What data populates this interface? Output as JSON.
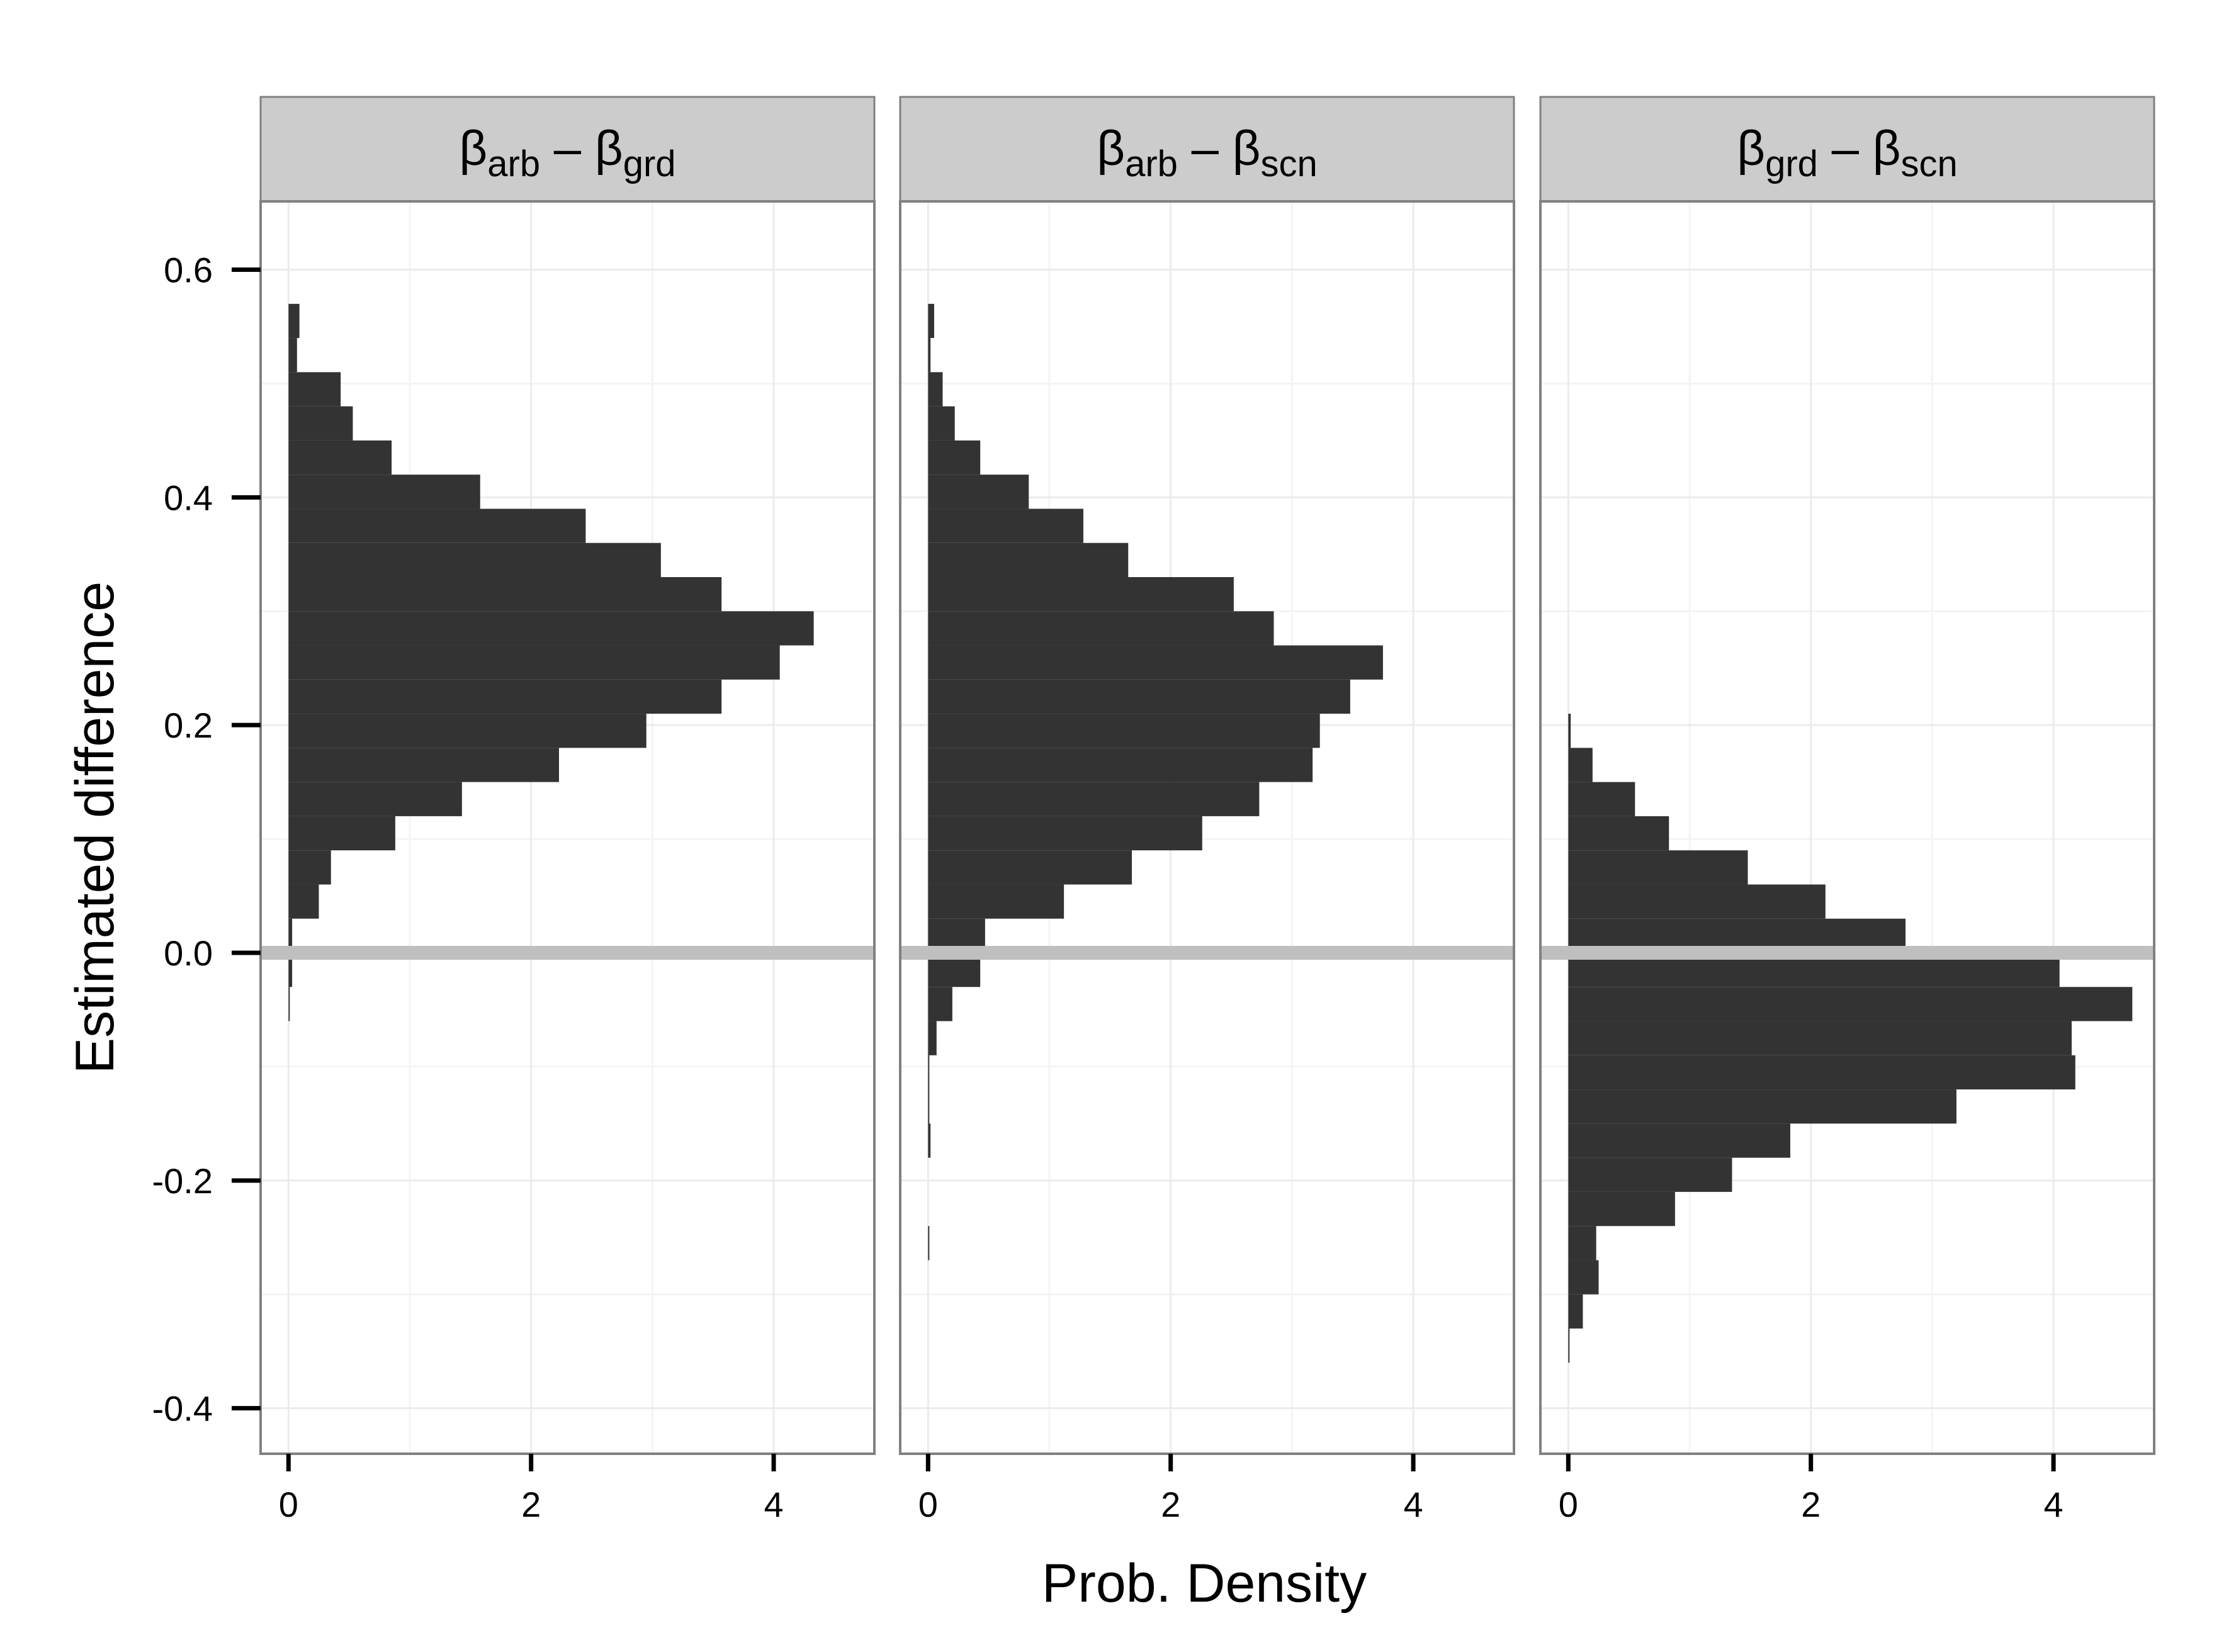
{
  "chart_data": {
    "type": "bar",
    "orientation": "horizontal histogram",
    "xlabel": "Prob. Density",
    "ylabel": "Estimated difference",
    "xlim": [
      -0.23,
      4.83
    ],
    "ylim": [
      -0.44,
      0.66
    ],
    "x_ticks": [
      "0",
      "2",
      "4"
    ],
    "y_ticks": [
      "0.6",
      "0.4",
      "0.2",
      "0.0",
      "-0.2",
      "-0.4"
    ],
    "grid": true,
    "reference_line_y": 0.0,
    "colors": {
      "bar": "#333333",
      "strip": "#cccccc",
      "reference_line": "#bfbfbf",
      "grid": "#ebebeb"
    },
    "panels": [
      {
        "strip": {
          "a": "β",
          "a_sub": "arb",
          "sep": " – ",
          "b": "β",
          "b_sub": "grd"
        },
        "bars": [
          {
            "y0": -0.06,
            "y1": -0.03,
            "density": 0.01
          },
          {
            "y0": -0.03,
            "y1": 0.0,
            "density": 0.03
          },
          {
            "y0": 0.0,
            "y1": 0.03,
            "density": 0.03
          },
          {
            "y0": 0.03,
            "y1": 0.06,
            "density": 0.25
          },
          {
            "y0": 0.06,
            "y1": 0.09,
            "density": 0.35
          },
          {
            "y0": 0.09,
            "y1": 0.12,
            "density": 0.88
          },
          {
            "y0": 0.12,
            "y1": 0.15,
            "density": 1.43
          },
          {
            "y0": 0.15,
            "y1": 0.18,
            "density": 2.23
          },
          {
            "y0": 0.18,
            "y1": 0.21,
            "density": 2.95
          },
          {
            "y0": 0.21,
            "y1": 0.24,
            "density": 3.57
          },
          {
            "y0": 0.24,
            "y1": 0.27,
            "density": 4.05
          },
          {
            "y0": 0.27,
            "y1": 0.3,
            "density": 4.33
          },
          {
            "y0": 0.3,
            "y1": 0.33,
            "density": 3.57
          },
          {
            "y0": 0.33,
            "y1": 0.36,
            "density": 3.07
          },
          {
            "y0": 0.36,
            "y1": 0.39,
            "density": 2.45
          },
          {
            "y0": 0.39,
            "y1": 0.42,
            "density": 1.58
          },
          {
            "y0": 0.42,
            "y1": 0.45,
            "density": 0.85
          },
          {
            "y0": 0.45,
            "y1": 0.48,
            "density": 0.53
          },
          {
            "y0": 0.48,
            "y1": 0.51,
            "density": 0.43
          },
          {
            "y0": 0.51,
            "y1": 0.54,
            "density": 0.07
          },
          {
            "y0": 0.54,
            "y1": 0.57,
            "density": 0.09
          }
        ]
      },
      {
        "strip": {
          "a": "β",
          "a_sub": "arb",
          "sep": " – ",
          "b": "β",
          "b_sub": "scn"
        },
        "bars": [
          {
            "y0": -0.27,
            "y1": -0.24,
            "density": 0.01
          },
          {
            "y0": -0.18,
            "y1": -0.15,
            "density": 0.02
          },
          {
            "y0": -0.15,
            "y1": -0.12,
            "density": 0.01
          },
          {
            "y0": -0.12,
            "y1": -0.09,
            "density": 0.01
          },
          {
            "y0": -0.09,
            "y1": -0.06,
            "density": 0.07
          },
          {
            "y0": -0.06,
            "y1": -0.03,
            "density": 0.2
          },
          {
            "y0": -0.03,
            "y1": 0.0,
            "density": 0.43
          },
          {
            "y0": 0.0,
            "y1": 0.03,
            "density": 0.47
          },
          {
            "y0": 0.03,
            "y1": 0.06,
            "density": 1.12
          },
          {
            "y0": 0.06,
            "y1": 0.09,
            "density": 1.68
          },
          {
            "y0": 0.09,
            "y1": 0.12,
            "density": 2.26
          },
          {
            "y0": 0.12,
            "y1": 0.15,
            "density": 2.73
          },
          {
            "y0": 0.15,
            "y1": 0.18,
            "density": 3.17
          },
          {
            "y0": 0.18,
            "y1": 0.21,
            "density": 3.23
          },
          {
            "y0": 0.21,
            "y1": 0.24,
            "density": 3.48
          },
          {
            "y0": 0.24,
            "y1": 0.27,
            "density": 3.75
          },
          {
            "y0": 0.27,
            "y1": 0.3,
            "density": 2.85
          },
          {
            "y0": 0.3,
            "y1": 0.33,
            "density": 2.52
          },
          {
            "y0": 0.33,
            "y1": 0.36,
            "density": 1.65
          },
          {
            "y0": 0.36,
            "y1": 0.39,
            "density": 1.28
          },
          {
            "y0": 0.39,
            "y1": 0.42,
            "density": 0.83
          },
          {
            "y0": 0.42,
            "y1": 0.45,
            "density": 0.43
          },
          {
            "y0": 0.45,
            "y1": 0.48,
            "density": 0.22
          },
          {
            "y0": 0.48,
            "y1": 0.51,
            "density": 0.12
          },
          {
            "y0": 0.51,
            "y1": 0.54,
            "density": 0.02
          },
          {
            "y0": 0.54,
            "y1": 0.57,
            "density": 0.05
          }
        ]
      },
      {
        "strip": {
          "a": "β",
          "a_sub": "grd",
          "sep": " – ",
          "b": "β",
          "b_sub": "scn"
        },
        "bars": [
          {
            "y0": -0.36,
            "y1": -0.33,
            "density": 0.01
          },
          {
            "y0": -0.33,
            "y1": -0.3,
            "density": 0.12
          },
          {
            "y0": -0.3,
            "y1": -0.27,
            "density": 0.25
          },
          {
            "y0": -0.27,
            "y1": -0.24,
            "density": 0.23
          },
          {
            "y0": -0.24,
            "y1": -0.21,
            "density": 0.88
          },
          {
            "y0": -0.21,
            "y1": -0.18,
            "density": 1.35
          },
          {
            "y0": -0.18,
            "y1": -0.15,
            "density": 1.83
          },
          {
            "y0": -0.15,
            "y1": -0.12,
            "density": 3.2
          },
          {
            "y0": -0.12,
            "y1": -0.09,
            "density": 4.18
          },
          {
            "y0": -0.09,
            "y1": -0.06,
            "density": 4.15
          },
          {
            "y0": -0.06,
            "y1": -0.03,
            "density": 4.65
          },
          {
            "y0": -0.03,
            "y1": 0.0,
            "density": 4.05
          },
          {
            "y0": 0.0,
            "y1": 0.03,
            "density": 2.78
          },
          {
            "y0": 0.03,
            "y1": 0.06,
            "density": 2.12
          },
          {
            "y0": 0.06,
            "y1": 0.09,
            "density": 1.48
          },
          {
            "y0": 0.09,
            "y1": 0.12,
            "density": 0.83
          },
          {
            "y0": 0.12,
            "y1": 0.15,
            "density": 0.55
          },
          {
            "y0": 0.15,
            "y1": 0.18,
            "density": 0.2
          },
          {
            "y0": 0.18,
            "y1": 0.21,
            "density": 0.02
          }
        ]
      }
    ]
  }
}
